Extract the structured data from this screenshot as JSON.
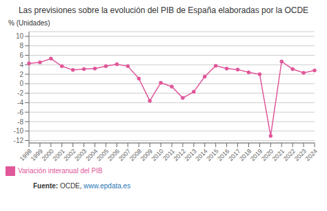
{
  "chart_data": {
    "type": "line",
    "title": "Las previsiones sobre la evolución del PIB de España elaboradas por la OCDE",
    "y_label": "% (Unidades)",
    "categories": [
      "1998",
      "1999",
      "2000",
      "2001",
      "2002",
      "2003",
      "2004",
      "2005",
      "2006",
      "2007",
      "2008",
      "2009",
      "2010",
      "2011",
      "2012",
      "2013",
      "2014",
      "2015",
      "2016",
      "2017",
      "2018",
      "2019",
      "2020",
      "2021",
      "2022",
      "2023",
      "2024"
    ],
    "series": [
      {
        "name": "Variación interanual del PIB",
        "color": "#e0579a",
        "marker": "circle",
        "values": [
          4.3,
          4.5,
          5.3,
          3.7,
          2.9,
          3.1,
          3.2,
          3.7,
          4.1,
          3.7,
          1.1,
          -3.6,
          0.2,
          -0.6,
          -3.0,
          -1.7,
          1.5,
          3.8,
          3.2,
          3.0,
          2.4,
          2.0,
          -11.0,
          4.7,
          3.1,
          2.3,
          2.8
        ]
      }
    ],
    "ylim": [
      -12.5,
      11.0
    ],
    "yticks": [
      -12,
      -10,
      -8,
      -6,
      -4,
      -2,
      0,
      2,
      4,
      6,
      8,
      10
    ],
    "grid": true,
    "legend": "bottom",
    "annotations": [
      "Fuente:",
      "OCDE,",
      "www.epdata.es"
    ]
  }
}
